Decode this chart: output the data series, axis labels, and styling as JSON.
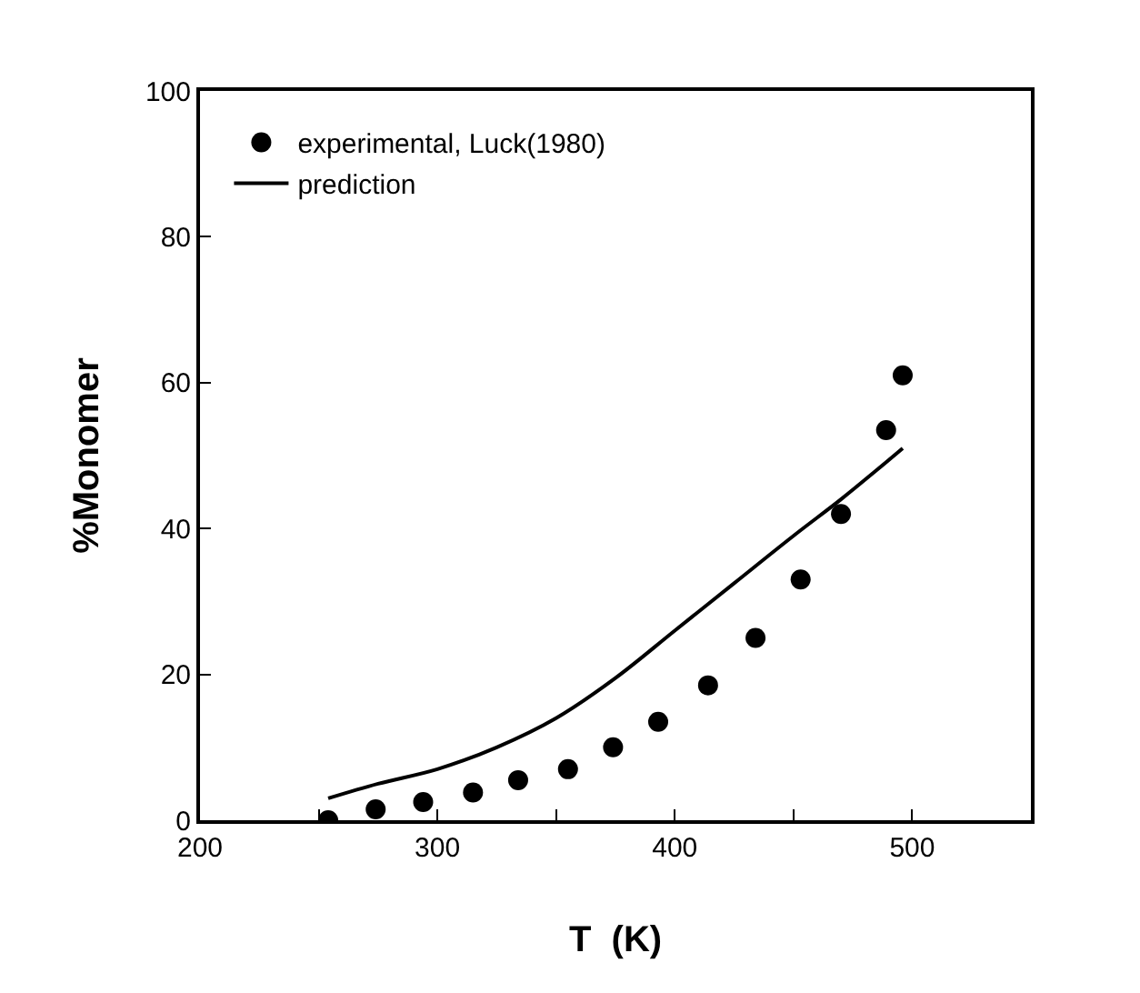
{
  "chart_data": {
    "type": "scatter",
    "xlabel": "T  (K)",
    "ylabel": "%Monomer",
    "xlim": [
      200,
      550
    ],
    "ylim": [
      0,
      100
    ],
    "xticks": [
      200,
      {
        "value": 250,
        "label": null
      },
      300,
      {
        "value": 350,
        "label": null
      },
      400,
      {
        "value": 450,
        "label": null
      },
      500
    ],
    "yticks": [
      0,
      20,
      40,
      60,
      80,
      100
    ],
    "legend": "top left",
    "series": [
      {
        "name": "experimental, Luck(1980)",
        "marker": "circle",
        "color": "#000000",
        "x": [
          254,
          274,
          294,
          315,
          334,
          355,
          374,
          393,
          414,
          434,
          453,
          470,
          489,
          496
        ],
        "values": [
          0,
          1.5,
          2.5,
          3.8,
          5.5,
          7,
          10,
          13.5,
          18.5,
          25,
          33,
          42,
          53.5,
          61
        ]
      },
      {
        "name": "prediction",
        "type": "line",
        "marker": "none",
        "line_style": "solid",
        "color": "#000000",
        "x": [
          254,
          275,
          300,
          325,
          350,
          375,
          400,
          425,
          450,
          470,
          485,
          496
        ],
        "values": [
          3,
          5,
          7,
          10,
          14,
          19.5,
          26,
          32.5,
          39,
          44,
          48,
          51
        ]
      }
    ]
  }
}
